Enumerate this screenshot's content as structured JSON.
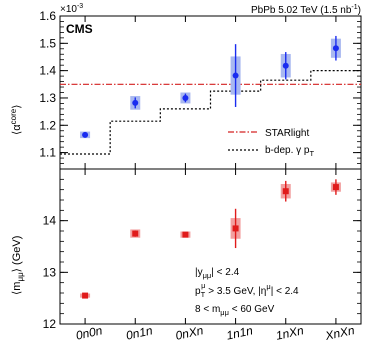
{
  "chart_data": [
    {
      "type": "scatter",
      "panel": "top",
      "experiment": "CMS",
      "header": "PbPb 5.02 TeV (1.5 nb",
      "header_sup": "-1",
      "header_close": ")",
      "exponent_label": "×10",
      "exponent_power": "-3",
      "ylabel": "⟨α",
      "ylabel_sup": "core",
      "ylabel_close": "⟩",
      "ylim": [
        1.04,
        1.6
      ],
      "yticks": [
        "1.1",
        "1.2",
        "1.3",
        "1.4",
        "1.5",
        "1.6"
      ],
      "categories": [
        "0n0n",
        "0n1n",
        "0nXn",
        "1n1n",
        "1nXn",
        "XnXn"
      ],
      "series": [
        {
          "name": "",
          "marker": "circle",
          "color": "#1a2cf0",
          "values": [
            1.165,
            1.282,
            1.3,
            1.382,
            1.418,
            1.482
          ],
          "stat_err": [
            0.008,
            0.02,
            0.016,
            0.115,
            0.05,
            0.045
          ],
          "syst_err": [
            0.012,
            0.025,
            0.02,
            0.07,
            0.043,
            0.035
          ]
        }
      ],
      "reference_lines": [
        {
          "name": "STARlight",
          "style": "dash-dot",
          "color": "#d42020",
          "value": 1.35
        },
        {
          "name": "b-dep. γ p",
          "name_sub": "T",
          "style": "dotted-step",
          "color": "#000000",
          "steps": [
            1.095,
            1.215,
            1.26,
            1.325,
            1.365,
            1.4
          ]
        }
      ],
      "legend": "bottom-right"
    },
    {
      "type": "scatter",
      "panel": "bottom",
      "ylabel": "⟨m",
      "ylabel_sub": "μμ",
      "ylabel_close": "⟩ (GeV)",
      "ylim": [
        12,
        15
      ],
      "yticks": [
        "12",
        "13",
        "14"
      ],
      "categories": [
        "0n0n",
        "0n1n",
        "0nXn",
        "1n1n",
        "1nXn",
        "XnXn"
      ],
      "series": [
        {
          "name": "",
          "marker": "square",
          "color": "#e01b1b",
          "values": [
            12.55,
            13.75,
            13.73,
            13.85,
            14.57,
            14.65
          ],
          "stat_err": [
            0.03,
            0.06,
            0.05,
            0.38,
            0.2,
            0.15
          ],
          "syst_err": [
            0.04,
            0.08,
            0.06,
            0.2,
            0.14,
            0.09
          ]
        }
      ],
      "annotations": [
        {
          "parts": [
            "|y",
            "μμ",
            "| < 2.4"
          ],
          "kind": "sub"
        },
        {
          "parts": [
            "p",
            "T",
            "μ",
            " > 3.5 GeV, |η",
            "μ",
            "| < 2.4"
          ],
          "kind": "pt"
        },
        {
          "parts": [
            "8 < m",
            "μμ",
            " < 60 GeV"
          ],
          "kind": "sub"
        }
      ]
    }
  ]
}
